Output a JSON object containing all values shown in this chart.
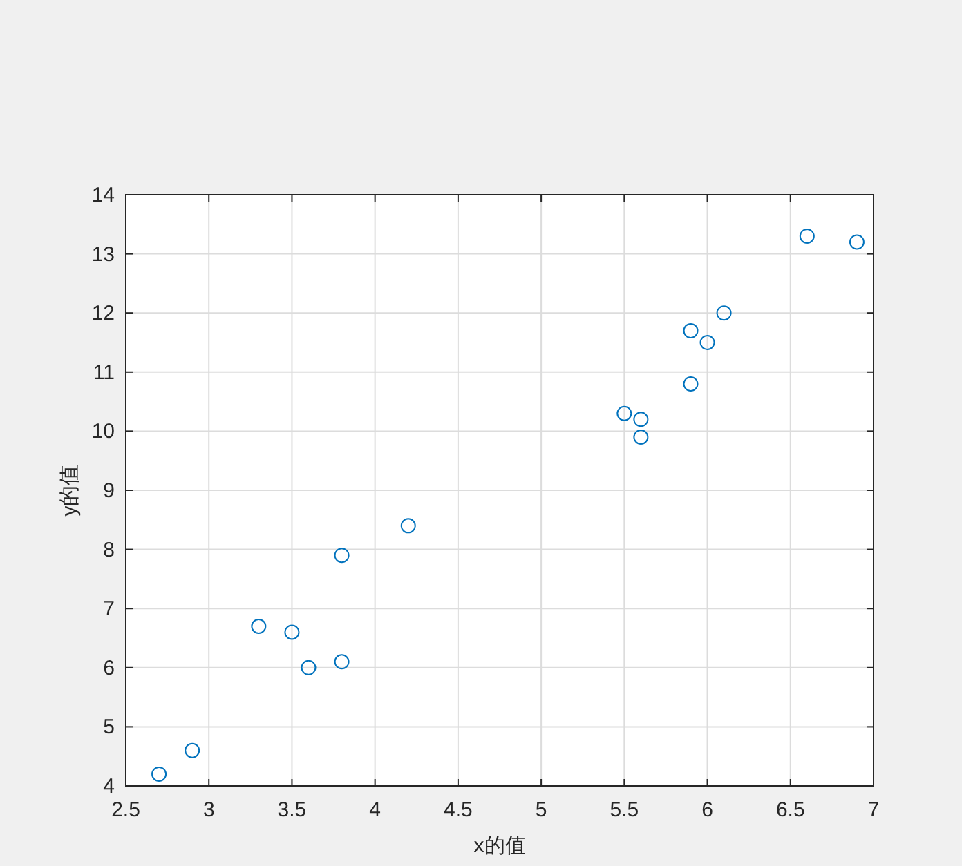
{
  "chart_data": {
    "type": "scatter",
    "xlabel": "x的值",
    "ylabel": "y的值",
    "x": [
      2.7,
      2.9,
      3.3,
      3.5,
      3.6,
      3.8,
      3.8,
      4.2,
      5.5,
      5.6,
      5.6,
      5.9,
      6.0,
      5.9,
      6.1,
      6.6,
      6.9
    ],
    "values": [
      4.2,
      4.6,
      6.7,
      6.6,
      6.0,
      7.9,
      6.1,
      8.4,
      10.3,
      10.2,
      9.9,
      11.7,
      11.5,
      10.8,
      12.0,
      13.3,
      13.2
    ],
    "color": "#0072bd",
    "marker": "circle",
    "grid": true,
    "xlim": [
      2.5,
      7
    ],
    "xticks": [
      2.5,
      3,
      3.5,
      4,
      4.5,
      5,
      5.5,
      6,
      6.5,
      7
    ],
    "ylim": [
      4,
      14
    ],
    "yticks": [
      4,
      5,
      6,
      7,
      8,
      9,
      10,
      11,
      12,
      13,
      14
    ]
  }
}
